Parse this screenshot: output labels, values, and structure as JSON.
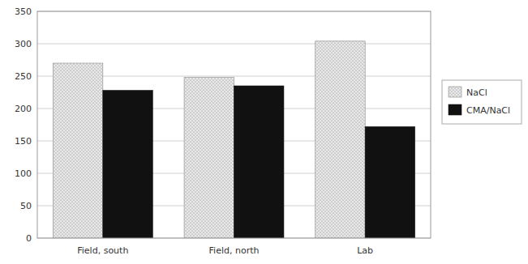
{
  "chart_data": {
    "type": "bar",
    "categories": [
      "Field, south",
      "Field, north",
      "Lab"
    ],
    "series": [
      {
        "name": "NaCl",
        "color": "#e8e8e8",
        "values": [
          270,
          248,
          304
        ]
      },
      {
        "name": "CMA/NaCl",
        "color": "#111111",
        "values": [
          228,
          235,
          172
        ]
      }
    ],
    "ylim": [
      0,
      350
    ],
    "yticks": [
      0,
      50,
      100,
      150,
      200,
      250,
      300,
      350
    ],
    "grid": true,
    "legend": "right"
  }
}
